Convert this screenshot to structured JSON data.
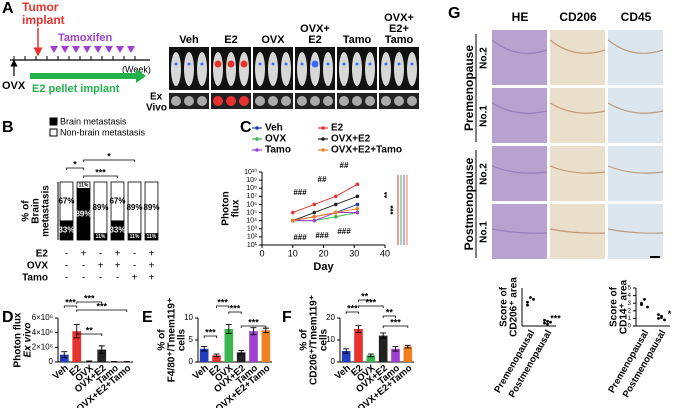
{
  "panel_a": {
    "label": "A",
    "tumor_implant": [
      "Tumor",
      "implant"
    ],
    "tamoxifen": "Tamoxifen",
    "ovx": "OVX",
    "week": "(Week)",
    "e2_pellet": "E2 pellet implant",
    "ex_vivo": [
      "Ex",
      "Vivo"
    ],
    "groups": [
      [
        "Veh"
      ],
      [
        "E2"
      ],
      [
        "OVX"
      ],
      [
        "OVX+",
        "E2"
      ],
      [
        "Tamo"
      ],
      [
        "OVX+",
        "E2+",
        "Tamo"
      ]
    ]
  },
  "panel_g": {
    "label": "G",
    "columns": [
      "HE",
      "CD206",
      "CD45"
    ],
    "groups": [
      "Premenopause",
      "Postmenopause"
    ],
    "rows": [
      "No.2",
      "No.1",
      "No.2",
      "No.1"
    ]
  },
  "chart_data": [
    {
      "type": "stacked_bar",
      "label": "B",
      "ylabel": [
        "% of",
        "Brain",
        "metastasis"
      ],
      "ylim": [
        0,
        100
      ],
      "series": [
        {
          "name": "Brain metastasis",
          "color": "#000000",
          "values": [
            33,
            89,
            11,
            33,
            11,
            11
          ],
          "value_labels": [
            "33%",
            "89%",
            "11%",
            "33%",
            "11%",
            "11%"
          ]
        },
        {
          "name": "Non-brain metastasis",
          "color": "#ffffff",
          "values": [
            67,
            11,
            89,
            67,
            89,
            89
          ],
          "value_labels": [
            "67%",
            "11%",
            "89%",
            "67%",
            "89%",
            "89%"
          ]
        }
      ],
      "table": [
        {
          "label": "E2",
          "cells": [
            "-",
            "+",
            "-",
            "+",
            "-",
            "+"
          ]
        },
        {
          "label": "OVX",
          "cells": [
            "-",
            "-",
            "+",
            "+",
            "-",
            "+"
          ]
        },
        {
          "label": "Tamo",
          "cells": [
            "-",
            "-",
            "-",
            "-",
            "+",
            "+"
          ]
        }
      ],
      "significance": [
        "*",
        "***",
        "*"
      ]
    },
    {
      "type": "line",
      "label": "C",
      "ylabel": [
        "Photon",
        "flux"
      ],
      "xlabel": "Day",
      "log_y": true,
      "x": [
        10,
        17,
        24,
        31
      ],
      "xlim": [
        0,
        40
      ],
      "xticks": [
        0,
        10,
        20,
        30,
        40
      ],
      "ylim": [
        10,
        10000000000
      ],
      "yticks": [
        {
          "value": 10,
          "label": "10¹"
        },
        {
          "value": 100,
          "label": "10²"
        },
        {
          "value": 1000,
          "label": "10³"
        },
        {
          "value": 10000,
          "label": "10⁴"
        },
        {
          "value": 100000,
          "label": "10⁵"
        },
        {
          "value": 1000000,
          "label": "10⁶"
        },
        {
          "value": 10000000,
          "label": "10⁷"
        },
        {
          "value": 100000000,
          "label": "10⁸"
        },
        {
          "value": 1000000000,
          "label": "10⁹"
        },
        {
          "value": 10000000000,
          "label": "10¹⁰"
        }
      ],
      "series": [
        {
          "name": "Veh",
          "color": "#1f3fbf",
          "values": [
            10000,
            30000,
            100000,
            1000000
          ]
        },
        {
          "name": "E2",
          "color": "#e8322d",
          "values": [
            100000,
            1000000,
            10000000,
            300000000
          ]
        },
        {
          "name": "OVX",
          "color": "#3cb44b",
          "values": [
            10000,
            10000,
            30000,
            100000
          ]
        },
        {
          "name": "OVX+E2",
          "color": "#222222",
          "values": [
            10000,
            100000,
            1000000,
            10000000
          ]
        },
        {
          "name": "Tamo",
          "color": "#a040d0",
          "values": [
            10000,
            10000,
            100000,
            100000
          ]
        },
        {
          "name": "OVX+E2+Tamo",
          "color": "#f08020",
          "values": [
            10000,
            30000,
            100000,
            300000
          ]
        }
      ],
      "annotations": [
        "###",
        "##",
        "##",
        "###",
        "###",
        "###",
        "**",
        "***"
      ]
    },
    {
      "type": "bar",
      "label": "D",
      "ylabel": [
        "Photon flux",
        "Ex vivo"
      ],
      "categories": [
        "Veh",
        "E2",
        "OVX",
        "OVX+E2",
        "Tamo",
        "OVX+E2+Tamo"
      ],
      "values": [
        1000000,
        4200000,
        100000,
        1700000,
        50000,
        50000
      ],
      "errors": [
        400000,
        900000,
        50000,
        500000,
        20000,
        20000
      ],
      "colors": [
        "#1f3fbf",
        "#e8322d",
        "#3cb44b",
        "#222222",
        "#a040d0",
        "#f08020"
      ],
      "ylim": [
        0,
        6000000
      ],
      "yticks": [
        0,
        {
          "value": 2000000,
          "label": "2×10⁶"
        },
        {
          "value": 4000000,
          "label": "4×10⁶"
        },
        {
          "value": 6000000,
          "label": "6×10⁶"
        }
      ],
      "significance": [
        "***",
        "***",
        "***",
        "**"
      ]
    },
    {
      "type": "bar",
      "label": "E",
      "ylabel": [
        "% of",
        "F4/80⁺/Tmem119⁺",
        "cells"
      ],
      "categories": [
        "Veh",
        "E2",
        "OVX",
        "OVX+E2",
        "Tamo",
        "OVX+E2+Tamo"
      ],
      "values": [
        3,
        1.5,
        7.5,
        2.2,
        7,
        7.2
      ],
      "errors": [
        0.5,
        0.3,
        1,
        0.4,
        0.8,
        0.5
      ],
      "colors": [
        "#1f3fbf",
        "#e8322d",
        "#3cb44b",
        "#222222",
        "#a040d0",
        "#f08020"
      ],
      "ylim": [
        0,
        10
      ],
      "yticks": [
        0,
        5,
        10
      ],
      "significance": [
        "***",
        "***",
        "***",
        "***"
      ]
    },
    {
      "type": "bar",
      "label": "F",
      "ylabel": [
        "% of",
        "CD206⁺/Tmem119⁺",
        "cells"
      ],
      "categories": [
        "Veh",
        "E2",
        "OVX",
        "OVX+E2",
        "Tamo",
        "OVX+E2+Tamo"
      ],
      "values": [
        5,
        15,
        3,
        12,
        6,
        7
      ],
      "errors": [
        1,
        1.5,
        0.6,
        1.2,
        1,
        0.6
      ],
      "colors": [
        "#1f3fbf",
        "#e8322d",
        "#3cb44b",
        "#222222",
        "#a040d0",
        "#f08020"
      ],
      "ylim": [
        0,
        20
      ],
      "yticks": [
        0,
        10,
        20
      ],
      "significance": [
        "***",
        "**",
        "***",
        "**",
        "***"
      ]
    },
    {
      "type": "strip",
      "ylabel": [
        "Score of",
        "CD206⁺ area"
      ],
      "categories": [
        "Premenopausal",
        "Postmenopausal"
      ],
      "values": [
        [
          2.5,
          3,
          2.8,
          2.2
        ],
        [
          0.3,
          0.5,
          0.4,
          0.6,
          0.2
        ]
      ],
      "ylim": [
        0,
        4
      ],
      "significance": [
        "***"
      ]
    },
    {
      "type": "strip",
      "ylabel": [
        "Score of",
        "CD14⁺ area"
      ],
      "categories": [
        "Premenopausal",
        "Postmenopausal"
      ],
      "values": [
        [
          3,
          3.5,
          2.5,
          2.8
        ],
        [
          1,
          1.3,
          0.8,
          1.5,
          1.1
        ]
      ],
      "ylim": [
        0,
        5
      ],
      "yticks": [
        0,
        1,
        2,
        3,
        4,
        5
      ],
      "significance": [
        "*"
      ]
    }
  ]
}
